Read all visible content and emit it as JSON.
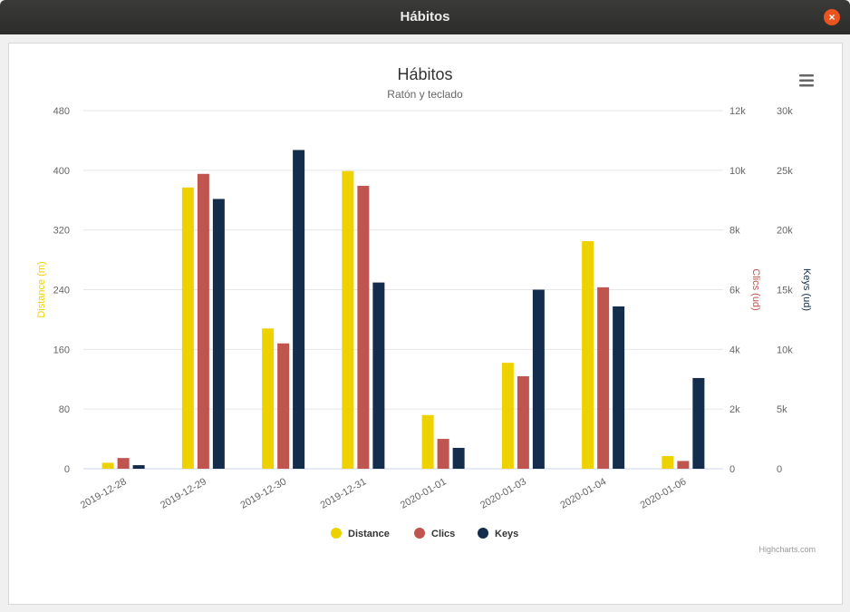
{
  "window": {
    "title": "Hábitos",
    "close_glyph": "×"
  },
  "chart_data": {
    "type": "bar",
    "title": "Hábitos",
    "subtitle": "Ratón y teclado",
    "categories": [
      "2019-12-28",
      "2019-12-29",
      "2019-12-30",
      "2019-12-31",
      "2020-01-01",
      "2020-01-03",
      "2020-01-04",
      "2020-01-06"
    ],
    "series": [
      {
        "name": "Distance",
        "color": "#eed200",
        "axis": 0,
        "values": [
          8,
          377,
          188,
          399,
          72,
          142,
          305,
          17
        ]
      },
      {
        "name": "Clics",
        "color": "#c0544e",
        "axis": 1,
        "values": [
          360,
          9880,
          4200,
          9480,
          1000,
          3100,
          6080,
          260
        ]
      },
      {
        "name": "Keys",
        "color": "#142d4c",
        "axis": 2,
        "values": [
          300,
          22600,
          26700,
          15600,
          1750,
          15000,
          13600,
          7600
        ]
      }
    ],
    "y_axes": [
      {
        "label": "Distance (m)",
        "min": 0,
        "max": 480,
        "ticks": [
          "0",
          "80",
          "160",
          "240",
          "320",
          "400",
          "480"
        ],
        "side": "left"
      },
      {
        "label": "Clics (ud)",
        "min": 0,
        "max": 12000,
        "ticks": [
          "0",
          "2k",
          "4k",
          "6k",
          "8k",
          "10k",
          "12k"
        ],
        "side": "right"
      },
      {
        "label": "Keys (ud)",
        "min": 0,
        "max": 30000,
        "ticks": [
          "0",
          "5k",
          "10k",
          "15k",
          "20k",
          "25k",
          "30k"
        ],
        "side": "right"
      }
    ],
    "grid": true,
    "legend": "bottom-center",
    "credits": "Highcharts.com",
    "colors": {
      "distance": "#eed200",
      "clics": "#c0544e",
      "keys": "#142d4c",
      "grid": "#e6e6e6"
    }
  },
  "menu_icon": "hamburger-menu-icon"
}
